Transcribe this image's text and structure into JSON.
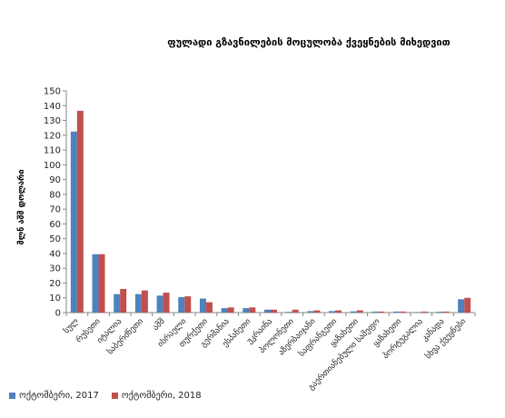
{
  "chart_data": {
    "type": "bar",
    "title": "ფულადი გზავნილების მოცულობა ქვეყნების მიხედვით",
    "ylabel": "მლნ აშშ დოლარი",
    "xlabel": "",
    "ylim": [
      0,
      150
    ],
    "ytick_step": 10,
    "grid": false,
    "legend_position": "bottom-left",
    "categories": [
      "სულ",
      "რუსეთი",
      "იტალია",
      "საბერძნეთი",
      "აშშ",
      "ისრაელი",
      "თურქეთი",
      "გერმანია",
      "ესპანეთი",
      "უკრაინა",
      "პოლონეთი",
      "აზერბაიჯანი",
      "საფრანგეთი",
      "ყაზახეთი",
      "გაერთიანებული სამეფო",
      "ყაზახეთი",
      "პორტუგალია",
      "კანადა",
      "სხვა ქვეყნები"
    ],
    "series": [
      {
        "name": "ოქტომბერი, 2017",
        "color": "#4f81bd",
        "values": [
          122.5,
          39.5,
          12.5,
          12.5,
          11.5,
          10.5,
          9.5,
          3,
          3,
          2,
          0.5,
          1,
          1,
          0.8,
          0.7,
          0.7,
          0.4,
          0.6,
          9
        ]
      },
      {
        "name": "ოქტომბერი, 2018",
        "color": "#c0504d",
        "values": [
          136.5,
          39.5,
          16,
          15,
          13.5,
          11,
          7,
          3.5,
          3.5,
          2,
          2,
          1.5,
          1.5,
          1.5,
          0.7,
          0.7,
          0.7,
          0.7,
          10
        ]
      }
    ]
  }
}
